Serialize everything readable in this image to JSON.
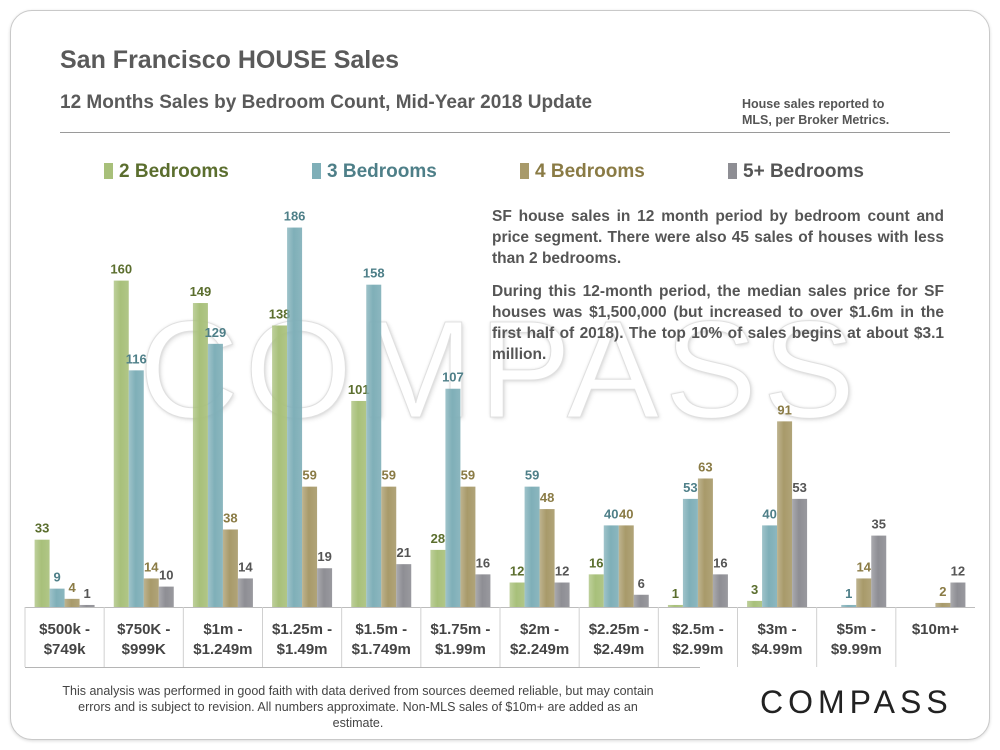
{
  "header": {
    "title": "San Francisco HOUSE Sales",
    "subtitle": "12 Months Sales by Bedroom Count, Mid-Year 2018 Update",
    "source_line1": "House sales reported to",
    "source_line2": "MLS, per Broker Metrics."
  },
  "watermark": "COMPASS",
  "note": {
    "p1": "SF house sales in 12 month period by bedroom count and price segment. There were also 45 sales of houses with less than 2 bedrooms.",
    "p2": "During this 12-month period, the median sales price for SF houses was $1,500,000 (but increased to over $1.6m in the first half of 2018). The top 10% of sales begins at about $3.1 million."
  },
  "footer": {
    "disclaimer": "This analysis was performed in good faith with data derived from sources deemed reliable, but may contain errors and is subject to revision. All numbers approximate. Non-MLS sales of $10m+ are added as an estimate.",
    "logo": "COMPASS"
  },
  "colors": {
    "s2": "#a8c07a",
    "s3": "#7fafb8",
    "s4": "#a89a6a",
    "s5": "#8e8e94",
    "s2_label": "#5b6e2e",
    "s3_label": "#4e7f88",
    "s4_label": "#8a7b45",
    "s5_label": "#555555"
  },
  "chart_data": {
    "type": "bar",
    "title": "12 Months Sales by Bedroom Count, Mid-Year 2018 Update",
    "legend_position": "top",
    "grid": false,
    "ylim": [
      0,
      200
    ],
    "categories": [
      [
        "$500k -",
        "$749k"
      ],
      [
        "$750K -",
        "$999K"
      ],
      [
        "$1m -",
        "$1.249m"
      ],
      [
        "$1.25m -",
        "$1.49m"
      ],
      [
        "$1.5m -",
        "$1.749m"
      ],
      [
        "$1.75m -",
        "$1.99m"
      ],
      [
        "$2m -",
        "$2.249m"
      ],
      [
        "$2.25m -",
        "$2.49m"
      ],
      [
        "$2.5m -",
        "$2.99m"
      ],
      [
        "$3m -",
        "$4.99m"
      ],
      [
        "$5m -",
        "$9.99m"
      ],
      [
        "$10m+",
        ""
      ]
    ],
    "series": [
      {
        "name": "2 Bedrooms",
        "values": [
          33,
          160,
          149,
          138,
          101,
          28,
          12,
          16,
          1,
          3,
          null,
          null
        ]
      },
      {
        "name": "3 Bedrooms",
        "values": [
          9,
          116,
          129,
          186,
          158,
          107,
          59,
          40,
          53,
          40,
          1,
          null
        ]
      },
      {
        "name": "4 Bedrooms",
        "values": [
          4,
          14,
          38,
          59,
          59,
          59,
          48,
          40,
          63,
          91,
          14,
          2
        ]
      },
      {
        "name": "5+ Bedrooms",
        "values": [
          1,
          10,
          14,
          19,
          21,
          16,
          12,
          6,
          16,
          53,
          35,
          12
        ]
      }
    ]
  }
}
